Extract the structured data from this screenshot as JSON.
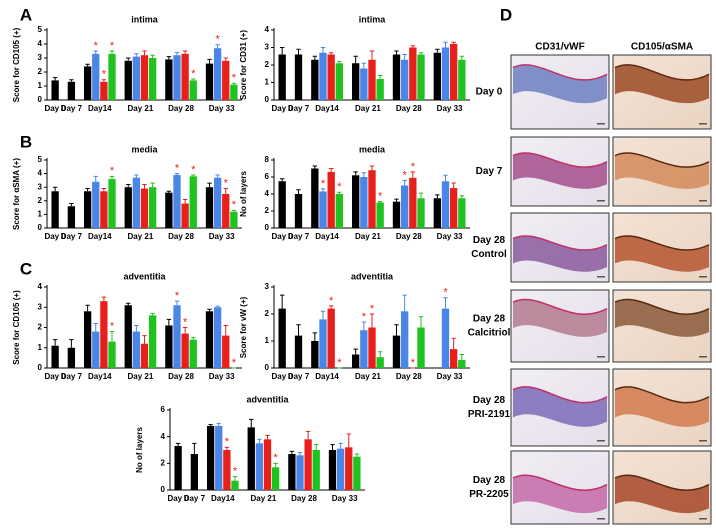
{
  "panel_labels": [
    "A",
    "B",
    "C",
    "D"
  ],
  "chart_data": [
    {
      "type": "bar",
      "title": "intima",
      "ylabel": "Score for CD105 (+)",
      "categories": [
        "Day 0",
        "Day 7",
        "Day14",
        "Day 21",
        "Day 28",
        "Day 33"
      ],
      "ylim": [
        0,
        5
      ],
      "yticks": [
        0,
        1,
        2,
        3,
        4,
        5
      ],
      "significance_mark": "*",
      "series": [
        {
          "color": "#000000",
          "values": [
            1.4,
            1.3,
            2.4,
            2.8,
            2.9,
            2.6
          ],
          "errors": [
            0.2,
            0.15,
            0.15,
            0.2,
            0.2,
            0.3
          ],
          "significant": [
            false,
            false,
            false,
            false,
            false,
            false
          ]
        },
        {
          "color": "#4a86e8",
          "values": [
            null,
            null,
            3.3,
            3.1,
            3.2,
            3.7
          ],
          "errors": [
            null,
            null,
            0.2,
            0.2,
            0.2,
            0.25
          ],
          "significant": [
            false,
            false,
            true,
            false,
            false,
            true
          ]
        },
        {
          "color": "#e8201c",
          "values": [
            null,
            null,
            1.3,
            3.2,
            3.3,
            2.8
          ],
          "errors": [
            null,
            null,
            0.15,
            0.3,
            0.2,
            0.2
          ],
          "significant": [
            false,
            false,
            true,
            false,
            false,
            false
          ]
        },
        {
          "color": "#1fc31f",
          "values": [
            null,
            null,
            3.3,
            3.0,
            1.4,
            1.1
          ],
          "errors": [
            null,
            null,
            0.2,
            0.2,
            0.1,
            0.1
          ],
          "significant": [
            false,
            false,
            true,
            false,
            true,
            true
          ]
        }
      ]
    },
    {
      "type": "bar",
      "title": "intima",
      "ylabel": "Score for CD31 (+)",
      "categories": [
        "Day 0",
        "Day 7",
        "Day14",
        "Day 21",
        "Day 28",
        "Day 33"
      ],
      "ylim": [
        0,
        4
      ],
      "yticks": [
        0,
        1,
        2,
        3,
        4
      ],
      "series": [
        {
          "color": "#000000",
          "values": [
            2.6,
            2.6,
            2.3,
            2.1,
            2.6,
            2.7
          ],
          "errors": [
            0.4,
            0.3,
            0.2,
            0.4,
            0.2,
            0.2
          ]
        },
        {
          "color": "#4a86e8",
          "values": [
            null,
            null,
            2.7,
            1.8,
            2.3,
            3.0
          ],
          "errors": [
            null,
            null,
            0.3,
            0.3,
            0.3,
            0.3
          ]
        },
        {
          "color": "#e8201c",
          "values": [
            null,
            null,
            2.6,
            2.3,
            3.0,
            3.2
          ],
          "errors": [
            null,
            null,
            0.1,
            0.5,
            0.1,
            0.1
          ]
        },
        {
          "color": "#1fc31f",
          "values": [
            null,
            null,
            2.1,
            1.2,
            2.6,
            2.3
          ],
          "errors": [
            null,
            null,
            0.1,
            0.2,
            0.1,
            0.2
          ]
        }
      ]
    },
    {
      "type": "bar",
      "title": "media",
      "ylabel": "Score for αSMA (+)",
      "categories": [
        "Day 0",
        "Day 7",
        "Day14",
        "Day 21",
        "Day 28",
        "Day 33"
      ],
      "ylim": [
        0,
        5
      ],
      "yticks": [
        0,
        1,
        2,
        3,
        4,
        5
      ],
      "significance_mark": "*",
      "series": [
        {
          "color": "#000000",
          "values": [
            2.7,
            1.6,
            2.7,
            3.0,
            2.6,
            3.0
          ],
          "errors": [
            0.3,
            0.2,
            0.2,
            0.2,
            0.1,
            0.3
          ],
          "significant": [
            false,
            false,
            false,
            false,
            false,
            false
          ]
        },
        {
          "color": "#4a86e8",
          "values": [
            null,
            null,
            3.4,
            3.7,
            3.9,
            3.7
          ],
          "errors": [
            null,
            null,
            0.4,
            0.2,
            0.1,
            0.2
          ],
          "significant": [
            false,
            false,
            false,
            false,
            true,
            false
          ]
        },
        {
          "color": "#e8201c",
          "values": [
            null,
            null,
            2.7,
            2.9,
            1.8,
            2.5
          ],
          "errors": [
            null,
            null,
            0.2,
            0.3,
            0.3,
            0.4
          ],
          "significant": [
            false,
            false,
            false,
            false,
            false,
            true
          ]
        },
        {
          "color": "#1fc31f",
          "values": [
            null,
            null,
            3.6,
            3.0,
            3.8,
            1.2
          ],
          "errors": [
            null,
            null,
            0.2,
            0.3,
            0.1,
            0.1
          ],
          "significant": [
            false,
            false,
            true,
            false,
            true,
            true
          ]
        }
      ]
    },
    {
      "type": "bar",
      "title": "media",
      "ylabel": "No of layers",
      "categories": [
        "Day 0",
        "Day 7",
        "Day14",
        "Day 21",
        "Day 28",
        "Day 33"
      ],
      "ylim": [
        0,
        8
      ],
      "yticks": [
        0,
        2,
        4,
        6,
        8
      ],
      "significance_mark": "*",
      "series": [
        {
          "color": "#000000",
          "values": [
            5.5,
            4.0,
            7.0,
            6.2,
            3.1,
            3.5
          ],
          "errors": [
            0.3,
            0.5,
            0.3,
            0.4,
            0.3,
            0.4
          ],
          "significant": [
            false,
            false,
            false,
            false,
            false,
            false
          ]
        },
        {
          "color": "#4a86e8",
          "values": [
            null,
            null,
            4.3,
            6.0,
            5.0,
            5.5
          ],
          "errors": [
            null,
            null,
            0.3,
            0.5,
            0.6,
            0.7
          ],
          "significant": [
            false,
            false,
            true,
            false,
            true,
            false
          ]
        },
        {
          "color": "#e8201c",
          "values": [
            null,
            null,
            6.6,
            6.8,
            5.9,
            4.7
          ],
          "errors": [
            null,
            null,
            0.4,
            0.5,
            0.7,
            0.6
          ],
          "significant": [
            false,
            false,
            false,
            false,
            true,
            false
          ]
        },
        {
          "color": "#1fc31f",
          "values": [
            null,
            null,
            4.0,
            3.0,
            3.5,
            3.5
          ],
          "errors": [
            null,
            null,
            0.2,
            0.1,
            0.6,
            0.3
          ],
          "significant": [
            false,
            false,
            true,
            true,
            false,
            false
          ]
        }
      ]
    },
    {
      "type": "bar",
      "title": "adventitia",
      "ylabel": "Score for CD105 (+)",
      "categories": [
        "Day 0",
        "Day 7",
        "Day14",
        "Day 21",
        "Day 28",
        "Day 33"
      ],
      "ylim": [
        0,
        4
      ],
      "yticks": [
        0,
        1,
        2,
        3,
        4
      ],
      "significance_mark": "*",
      "series": [
        {
          "color": "#000000",
          "values": [
            1.1,
            1.0,
            2.8,
            3.1,
            2.1,
            2.8
          ],
          "errors": [
            0.3,
            0.4,
            0.3,
            0.1,
            0.3,
            0.1
          ],
          "significant": [
            false,
            false,
            false,
            false,
            false,
            false
          ]
        },
        {
          "color": "#4a86e8",
          "values": [
            null,
            null,
            1.8,
            1.8,
            3.1,
            3.0
          ],
          "errors": [
            null,
            null,
            0.4,
            0.3,
            0.2,
            0.05
          ],
          "significant": [
            false,
            false,
            false,
            false,
            true,
            false
          ]
        },
        {
          "color": "#e8201c",
          "values": [
            null,
            null,
            3.3,
            1.2,
            1.7,
            1.6
          ],
          "errors": [
            null,
            null,
            0.2,
            0.4,
            0.3,
            0.5
          ],
          "significant": [
            false,
            false,
            false,
            false,
            true,
            false
          ]
        },
        {
          "color": "#1fc31f",
          "values": [
            null,
            null,
            1.3,
            2.6,
            1.4,
            0
          ],
          "errors": [
            null,
            null,
            0.5,
            0.1,
            0.1,
            0
          ],
          "significant": [
            false,
            false,
            true,
            false,
            false,
            true
          ]
        }
      ]
    },
    {
      "type": "bar",
      "title": "adventitia",
      "ylabel": "Score for vW (+)",
      "categories": [
        "Day 0",
        "Day 7",
        "Day14",
        "Day 21",
        "Day 28",
        "Day 33"
      ],
      "ylim": [
        0,
        3
      ],
      "yticks": [
        0,
        1,
        2,
        3
      ],
      "significance_mark": "*",
      "series": [
        {
          "color": "#000000",
          "values": [
            2.2,
            1.2,
            1.0,
            0.5,
            1.2,
            0
          ],
          "errors": [
            0.5,
            0.4,
            0.3,
            0.2,
            0.4,
            0
          ],
          "significant": [
            false,
            false,
            false,
            false,
            false,
            false
          ]
        },
        {
          "color": "#4a86e8",
          "values": [
            null,
            null,
            1.8,
            1.4,
            2.1,
            2.2
          ],
          "errors": [
            null,
            null,
            0.3,
            0.3,
            0.6,
            0.4
          ],
          "significant": [
            false,
            false,
            false,
            true,
            false,
            true
          ]
        },
        {
          "color": "#e8201c",
          "values": [
            null,
            null,
            2.2,
            1.5,
            0,
            0.7
          ],
          "errors": [
            null,
            null,
            0.1,
            0.5,
            0,
            0.4
          ],
          "significant": [
            false,
            false,
            true,
            true,
            true,
            false
          ]
        },
        {
          "color": "#1fc31f",
          "values": [
            null,
            null,
            0,
            0.4,
            1.5,
            0.3
          ],
          "errors": [
            null,
            null,
            0,
            0.2,
            0.4,
            0.2
          ],
          "significant": [
            false,
            false,
            true,
            false,
            false,
            false
          ]
        }
      ]
    },
    {
      "type": "bar",
      "title": "adventitia",
      "ylabel": "No of layers",
      "categories": [
        "Day 0",
        "Day 7",
        "Day14",
        "Day 21",
        "Day 28",
        "Day 33"
      ],
      "ylim": [
        0,
        6
      ],
      "yticks": [
        0,
        2,
        4,
        6
      ],
      "significance_mark": "*",
      "series": [
        {
          "color": "#000000",
          "values": [
            3.3,
            2.7,
            4.8,
            4.7,
            2.7,
            3.0
          ],
          "errors": [
            0.2,
            0.8,
            0.1,
            0.6,
            0.2,
            0.4
          ],
          "significant": [
            false,
            false,
            false,
            false,
            false,
            false
          ]
        },
        {
          "color": "#4a86e8",
          "values": [
            null,
            null,
            4.8,
            3.5,
            2.6,
            3.1
          ],
          "errors": [
            null,
            null,
            0.2,
            0.3,
            0.2,
            0.4
          ],
          "significant": [
            false,
            false,
            false,
            false,
            false,
            false
          ]
        },
        {
          "color": "#e8201c",
          "values": [
            null,
            null,
            3.0,
            3.8,
            3.8,
            3.2
          ],
          "errors": [
            null,
            null,
            0.2,
            0.3,
            0.6,
            1.0
          ],
          "significant": [
            false,
            false,
            true,
            false,
            false,
            false
          ]
        },
        {
          "color": "#1fc31f",
          "values": [
            null,
            null,
            0.7,
            1.7,
            3.0,
            2.5
          ],
          "errors": [
            null,
            null,
            0.3,
            0.3,
            0.4,
            0.2
          ],
          "significant": [
            false,
            false,
            true,
            true,
            false,
            false
          ]
        }
      ]
    }
  ],
  "micrographs": {
    "columns": [
      "CD31/vWF",
      "CD105/αSMA"
    ],
    "rows": [
      [
        "Day 0"
      ],
      [
        "Day 7"
      ],
      [
        "Day 28",
        "Control"
      ],
      [
        "Day 28",
        "Calcitriol"
      ],
      [
        "Day 28",
        "PRI-2191"
      ],
      [
        "Day 28",
        "PR-2205"
      ]
    ]
  }
}
